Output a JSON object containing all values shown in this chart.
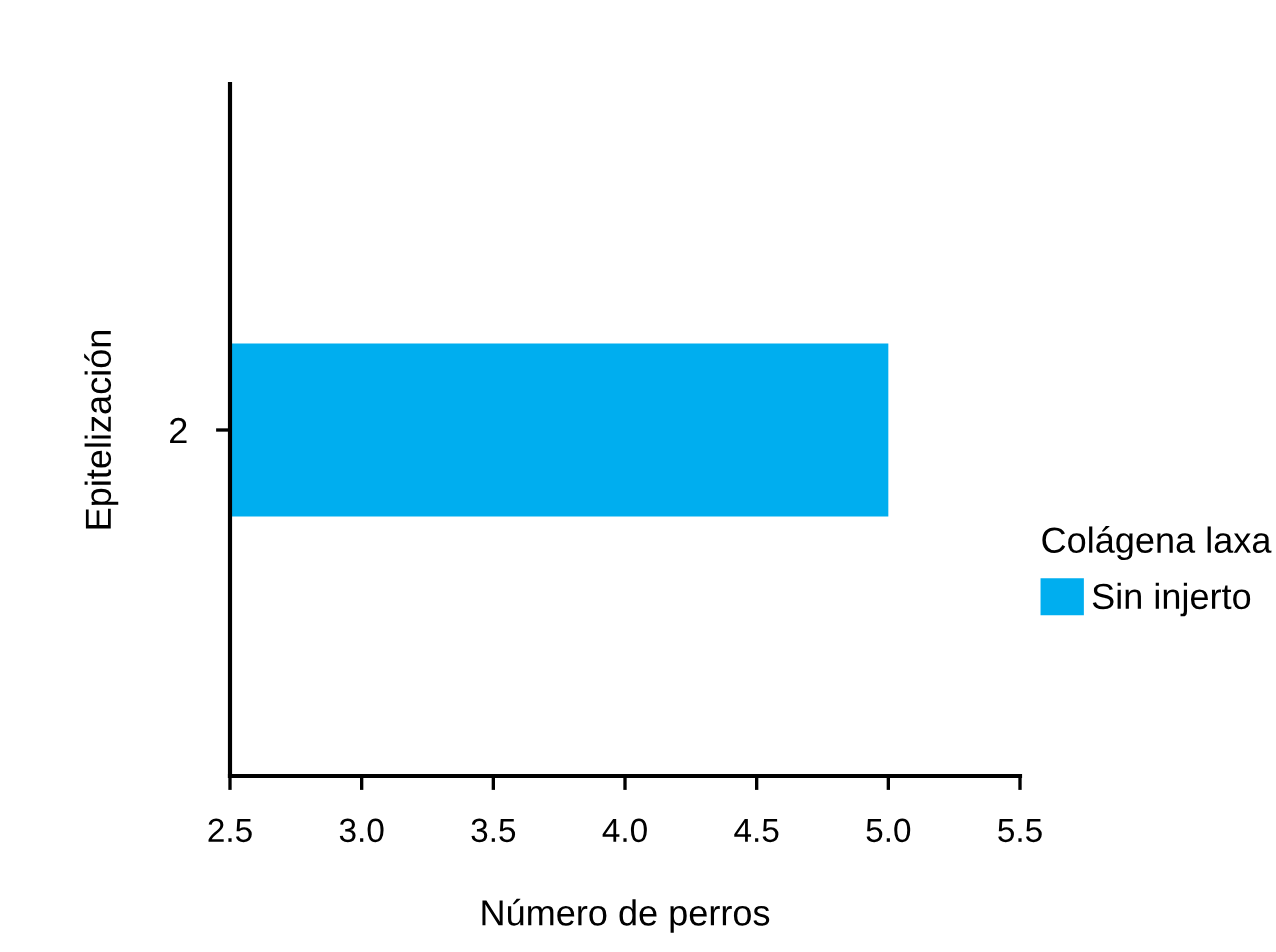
{
  "chart_data": {
    "type": "bar",
    "orientation": "horizontal",
    "xlabel": "Número de perros",
    "ylabel": "Epitelización",
    "categories": [
      "2"
    ],
    "series": [
      {
        "name": "Sin injerto",
        "color": "#00aeef",
        "values": [
          5.0
        ]
      }
    ],
    "xlim": [
      2.5,
      5.5
    ],
    "xticks": [
      {
        "value": 2.5,
        "label": "2.5"
      },
      {
        "value": 3,
        "label": "3.0"
      },
      {
        "value": 3.5,
        "label": "3.5"
      },
      {
        "value": 4,
        "label": "4.0"
      },
      {
        "value": 4.5,
        "label": "4.5"
      },
      {
        "value": 5,
        "label": "5.0"
      },
      {
        "value": 5.5,
        "label": "5.5"
      }
    ],
    "legend_title": "Colágena laxa",
    "legend": "right",
    "grid": false
  }
}
